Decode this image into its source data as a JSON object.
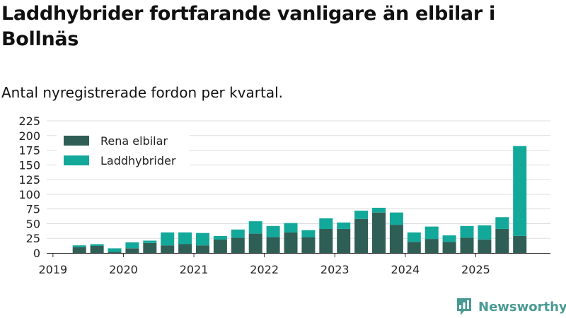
{
  "title": "Laddhybrider fortfarande vanligare än elbilar i Bollnäs",
  "subtitle": "Antal nyregistrerade fordon per kvartal.",
  "brand": {
    "name": "Newsworthy"
  },
  "colors": {
    "elbilar": "#2e5e55",
    "laddhybrider": "#12a89a",
    "grid": "#dddddd",
    "axis": "#333333"
  },
  "chart_data": {
    "type": "bar",
    "stacked": true,
    "categories": [
      "2019 Q1",
      "2019 Q2",
      "2019 Q3",
      "2019 Q4",
      "2020 Q1",
      "2020 Q2",
      "2020 Q3",
      "2020 Q4",
      "2021 Q1",
      "2021 Q2",
      "2021 Q3",
      "2021 Q4",
      "2022 Q1",
      "2022 Q2",
      "2022 Q3",
      "2022 Q4",
      "2023 Q1",
      "2023 Q2",
      "2023 Q3",
      "2023 Q4",
      "2024 Q1",
      "2024 Q2",
      "2024 Q3",
      "2024 Q4",
      "2025 Q1",
      "2025 Q2",
      "2025 Q3"
    ],
    "series": [
      {
        "name": "Rena elbilar",
        "values": [
          10,
          12,
          2,
          8,
          17,
          13,
          15,
          13,
          23,
          26,
          33,
          27,
          35,
          27,
          41,
          41,
          58,
          69,
          48,
          19,
          24,
          19,
          26,
          23,
          41,
          29,
          0
        ]
      },
      {
        "name": "Laddhybrider",
        "values": [
          3,
          3,
          6,
          10,
          4,
          22,
          20,
          21,
          6,
          14,
          21,
          19,
          16,
          12,
          18,
          11,
          14,
          8,
          21,
          16,
          21,
          11,
          20,
          24,
          20,
          153,
          0
        ]
      }
    ],
    "x_tick_labels": [
      "2019",
      "2020",
      "2021",
      "2022",
      "2023",
      "2024",
      "2025"
    ],
    "y_ticks": [
      0,
      25,
      50,
      75,
      100,
      125,
      150,
      175,
      200,
      225
    ],
    "ylim": [
      0,
      225
    ],
    "grid": true,
    "legend_position": "top-left"
  }
}
